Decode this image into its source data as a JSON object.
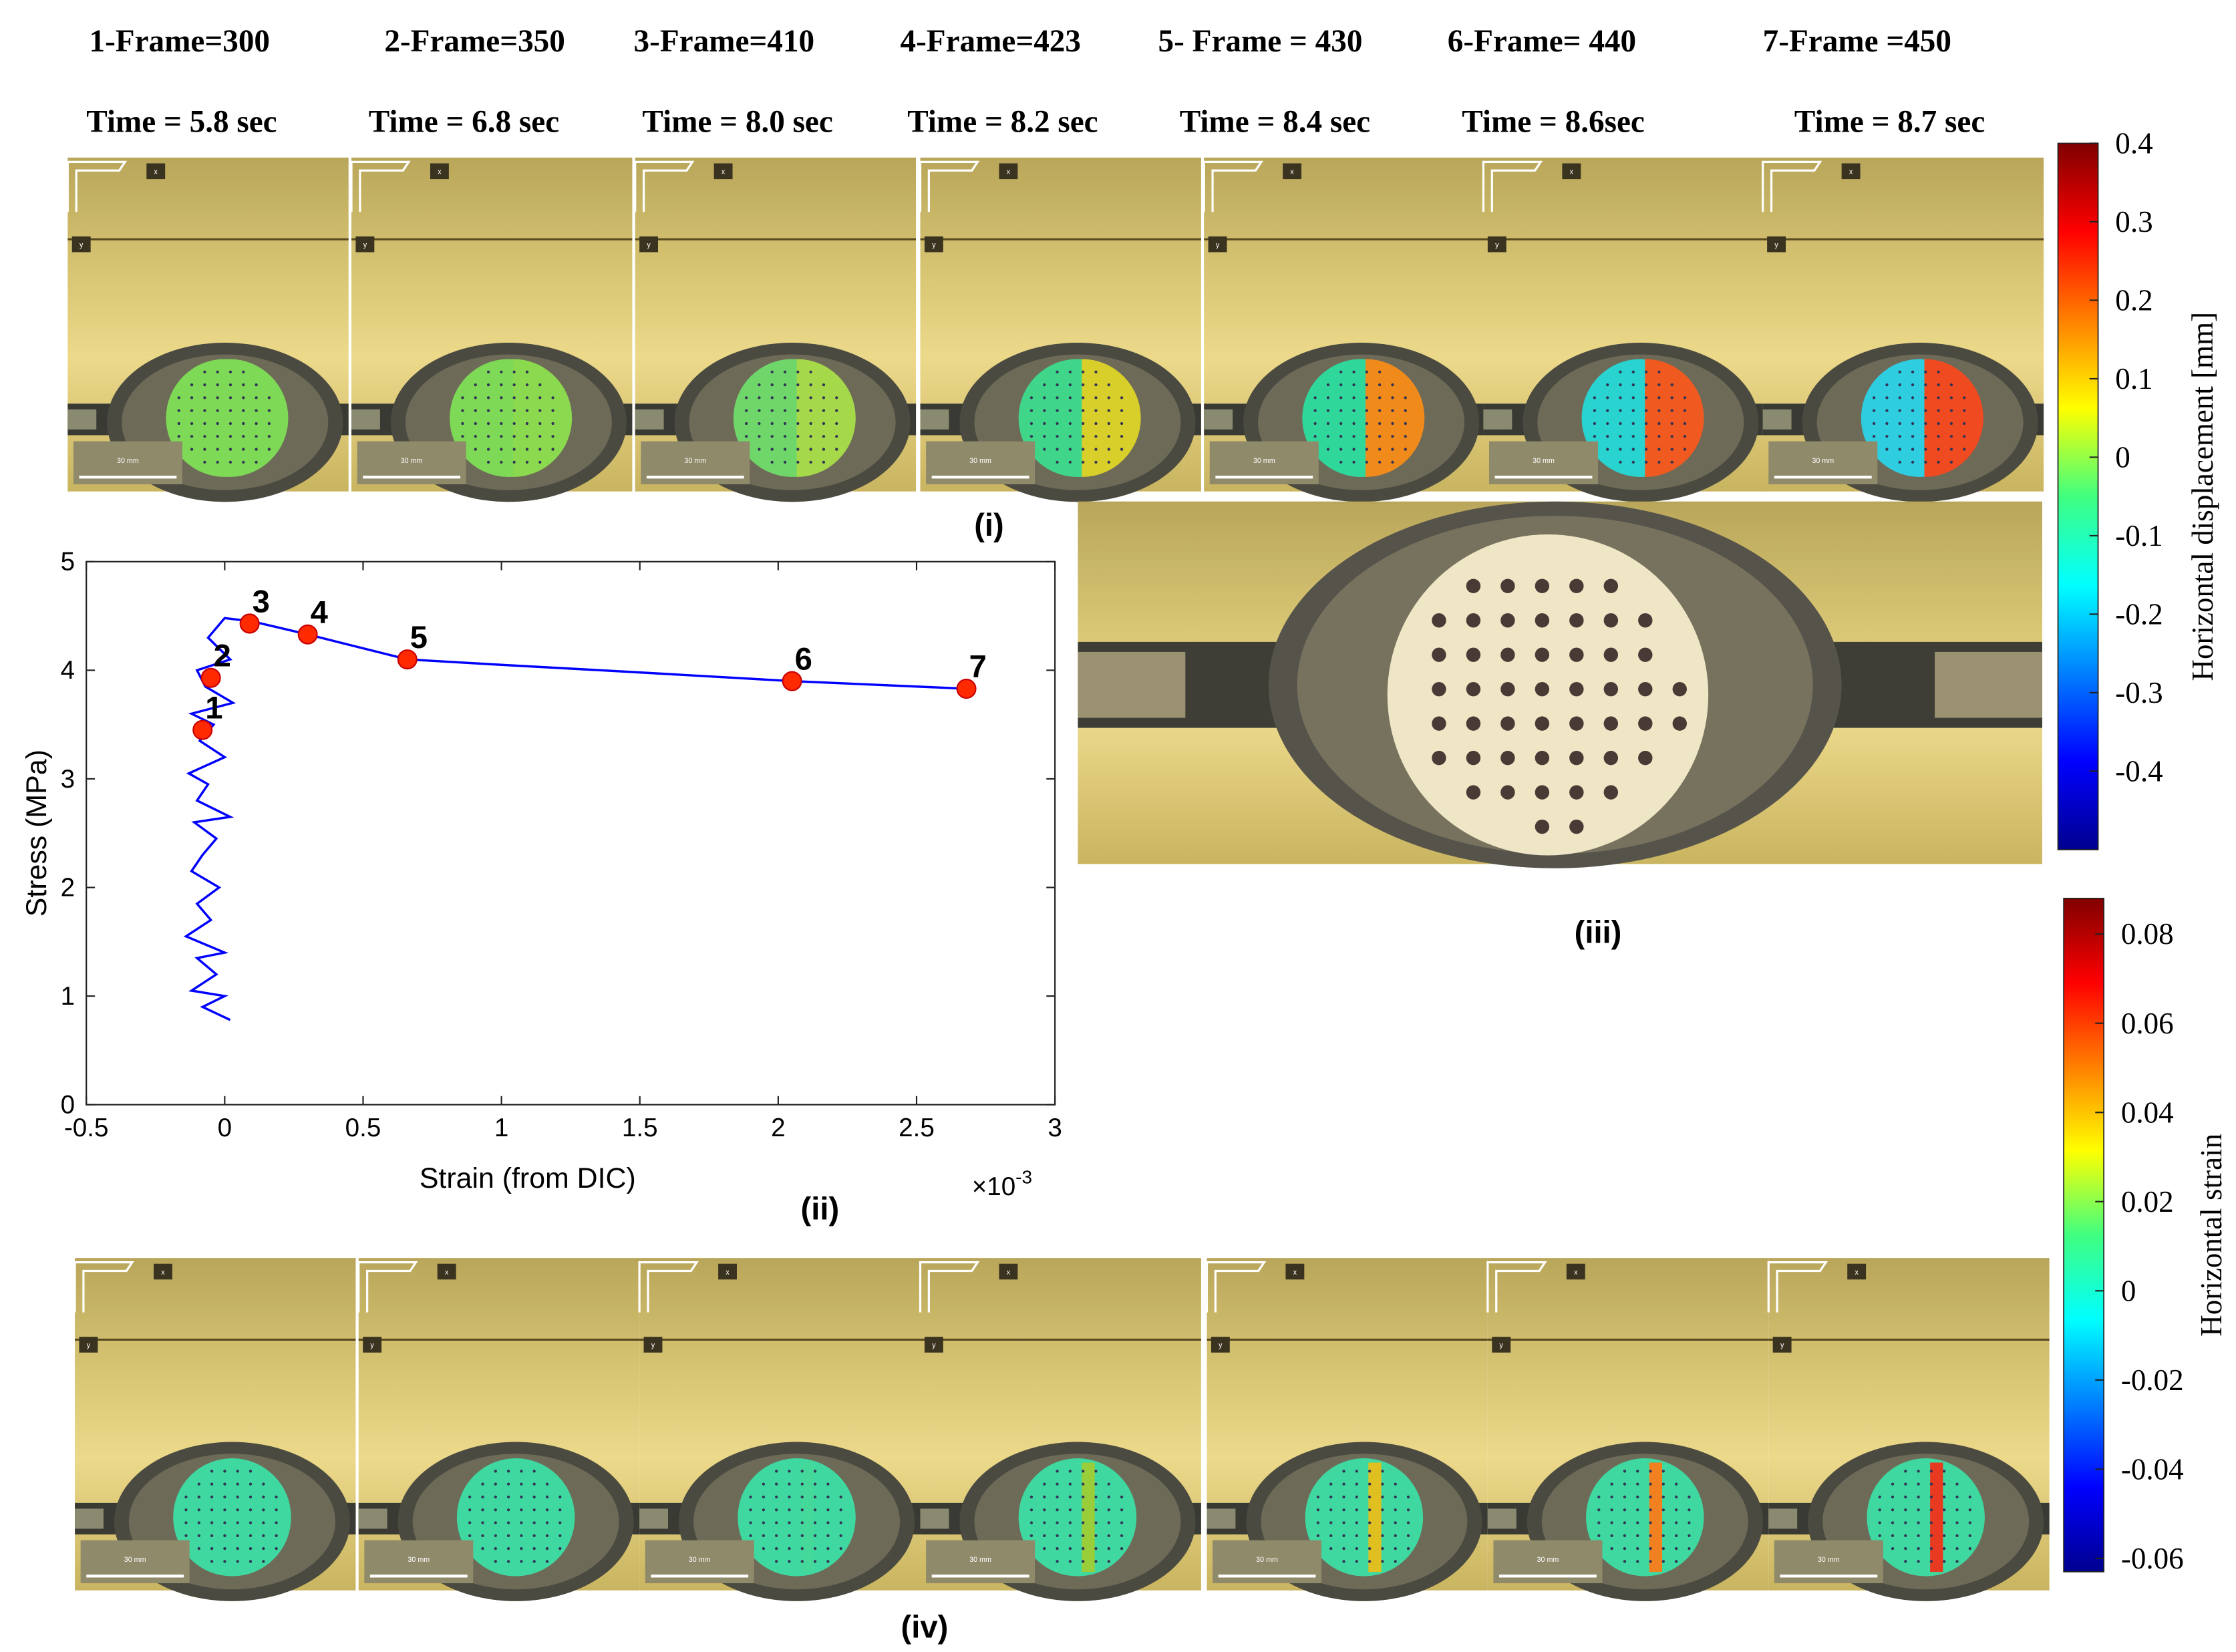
{
  "frames": [
    {
      "label": "1-Frame=300",
      "time": "Time = 5.8 sec"
    },
    {
      "label": "2-Frame=350",
      "time": "Time = 6.8 sec"
    },
    {
      "label": "3-Frame=410",
      "time": "Time = 8.0 sec"
    },
    {
      "label": "4-Frame=423",
      "time": "Time = 8.2 sec"
    },
    {
      "label": "5- Frame = 430",
      "time": "Time = 8.4 sec"
    },
    {
      "label": "6-Frame= 440",
      "time": "Time = 8.6sec"
    },
    {
      "label": "7-Frame =450",
      "time": "Time = 8.7 sec"
    }
  ],
  "thumb_marks": {
    "x": "x",
    "y": "y",
    "scale": "30 mm"
  },
  "panel_labels": [
    "(i)",
    "(ii)",
    "(iii)",
    "(iv)"
  ],
  "colorbars": {
    "top": {
      "label": "Horizontal displacement [mm]",
      "lim": [
        -0.5,
        0.4
      ],
      "ticks": [
        0.4,
        0.3,
        0.2,
        0.1,
        0,
        -0.1,
        -0.2,
        -0.3,
        -0.4
      ]
    },
    "bottom": {
      "label": "Horizontal strain",
      "lim": [
        -0.063,
        0.088
      ],
      "ticks": [
        0.08,
        0.06,
        0.04,
        0.02,
        0,
        -0.02,
        -0.04,
        -0.06
      ]
    }
  },
  "chart_data": {
    "type": "line",
    "xlabel": "Strain (from DIC)",
    "ylabel": "Stress (MPa)",
    "x_multiplier": "×10",
    "x_exponent": "-3",
    "xlim": [
      -0.5,
      3
    ],
    "xticks": [
      -0.5,
      0,
      0.5,
      1,
      1.5,
      2,
      2.5,
      3
    ],
    "ylim": [
      0,
      5
    ],
    "yticks": [
      0,
      1,
      2,
      3,
      4,
      5
    ],
    "series": [
      {
        "color": "#0000ff",
        "mode": "line",
        "x": [
          0.02,
          -0.08,
          0.0,
          -0.12,
          -0.03,
          -0.1,
          0.0,
          -0.14,
          -0.05,
          -0.1,
          -0.02,
          -0.12,
          -0.08,
          -0.03,
          -0.11,
          0.02,
          -0.1,
          -0.06,
          -0.13,
          0.0,
          -0.09,
          -0.04,
          -0.12,
          0.03,
          -0.07,
          -0.1,
          0.02,
          -0.06,
          0.0,
          0.1,
          0.3,
          0.66,
          1.0,
          1.5,
          2.05,
          2.68
        ],
        "values": [
          0.78,
          0.9,
          1.0,
          1.05,
          1.2,
          1.35,
          1.4,
          1.55,
          1.7,
          1.85,
          2.0,
          2.15,
          2.3,
          2.45,
          2.6,
          2.65,
          2.8,
          2.95,
          3.05,
          3.2,
          3.35,
          3.5,
          3.6,
          3.7,
          3.85,
          4.0,
          4.1,
          4.3,
          4.48,
          4.45,
          4.33,
          4.1,
          4.05,
          3.98,
          3.9,
          3.83
        ]
      },
      {
        "color": "#ff2a00",
        "mode": "markers",
        "x": [
          -0.08,
          -0.05,
          0.09,
          0.3,
          0.66,
          2.05,
          2.68
        ],
        "values": [
          3.45,
          3.93,
          4.43,
          4.33,
          4.1,
          3.9,
          3.83
        ],
        "labels": [
          "1",
          "2",
          "3",
          "4",
          "5",
          "6",
          "7"
        ]
      }
    ]
  }
}
